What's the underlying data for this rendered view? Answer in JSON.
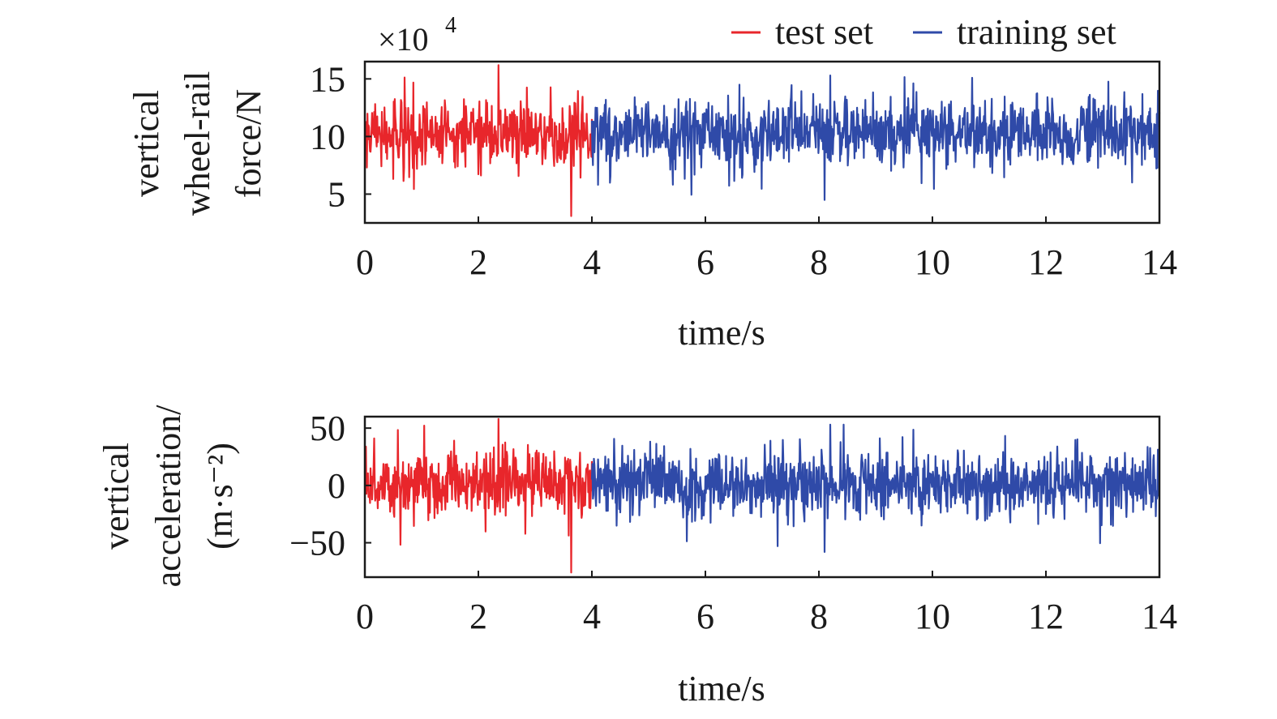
{
  "colors": {
    "test": "#e8262b",
    "training": "#2f4aa8",
    "axis": "#1a1a1a"
  },
  "legend": {
    "items": [
      {
        "label": "test set",
        "color": "#e8262b"
      },
      {
        "label": "training set",
        "color": "#2f4aa8"
      }
    ]
  },
  "chart_data": [
    {
      "type": "line",
      "multiplier": {
        "base": "×10",
        "exponent": "4"
      },
      "ylabel_lines": [
        "vertical",
        "wheel-rail",
        "force/N"
      ],
      "xlabel": "time/s",
      "xlim": [
        0,
        14
      ],
      "ylim": [
        2.5,
        16.5
      ],
      "xticks": [
        0,
        2,
        4,
        6,
        8,
        10,
        12,
        14
      ],
      "yticks": [
        5,
        10,
        15
      ],
      "ytick_labels": [
        "5",
        "10",
        "15"
      ],
      "series": [
        {
          "name": "test set",
          "x_range": [
            0,
            4
          ],
          "mean": 10.2,
          "spread": 1.6,
          "max": 16.2,
          "min": 3.1
        },
        {
          "name": "training set",
          "x_range": [
            4,
            14
          ],
          "mean": 10.3,
          "spread": 1.6,
          "max": 15.3,
          "min": 4.5
        }
      ]
    },
    {
      "type": "line",
      "ylabel_lines": [
        "vertical",
        "acceleration/",
        "(m·s⁻²)"
      ],
      "xlabel": "time/s",
      "xlim": [
        0,
        14
      ],
      "ylim": [
        -80,
        60
      ],
      "xticks": [
        0,
        2,
        4,
        6,
        8,
        10,
        12,
        14
      ],
      "yticks": [
        -50,
        0,
        50
      ],
      "ytick_labels": [
        "−50",
        "0",
        "50"
      ],
      "series": [
        {
          "name": "test set",
          "x_range": [
            0,
            4
          ],
          "mean": 2,
          "spread": 16,
          "max": 58,
          "min": -76
        },
        {
          "name": "training set",
          "x_range": [
            4,
            14
          ],
          "mean": 1,
          "spread": 16,
          "max": 53,
          "min": -58
        }
      ]
    }
  ]
}
